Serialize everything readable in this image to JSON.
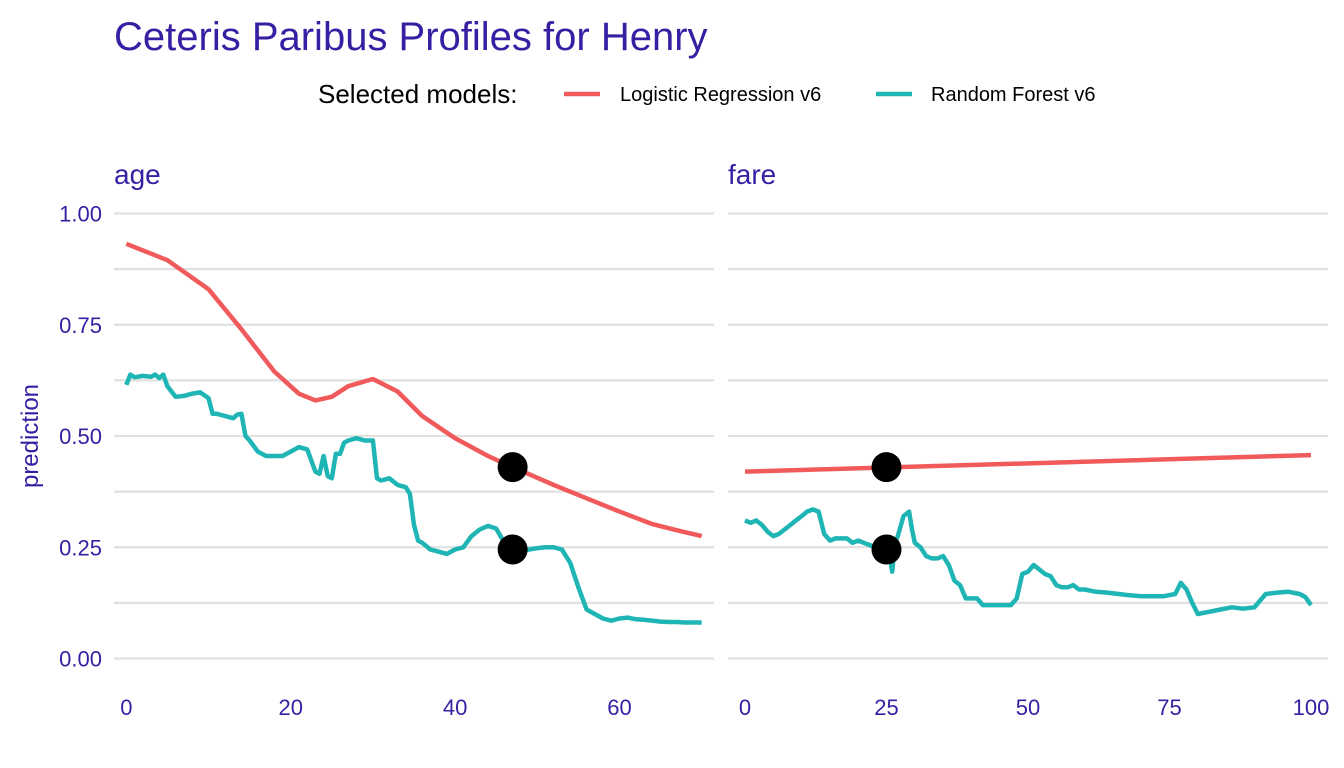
{
  "chart_data": {
    "type": "line",
    "title": "Ceteris Paribus Profiles for Henry",
    "legend": {
      "title": "Selected models:",
      "placement": "top",
      "entries": [
        {
          "label": "Logistic Regression v6",
          "color": "#f05a5a"
        },
        {
          "label": "Random Forest v6",
          "color": "#1fb5b5"
        }
      ]
    },
    "ylabel": "prediction",
    "ylim": [
      0,
      1
    ],
    "yticks": [
      "0.00",
      "0.25",
      "0.50",
      "0.75",
      "1.00"
    ],
    "grid": true,
    "point_color": "#000000",
    "panels": [
      {
        "label": "age",
        "xlim": [
          -1.5,
          71.5
        ],
        "xticks": [
          "0",
          "20",
          "40",
          "60"
        ],
        "observation": {
          "x": 47,
          "values": [
            0.43,
            0.245
          ]
        },
        "series": [
          {
            "name": "Logistic Regression v6",
            "color": "#f05a5a",
            "x": [
              0,
              5,
              10,
              14,
              18,
              21,
              23,
              25,
              27,
              30,
              33,
              36,
              40,
              44,
              47,
              52,
              56,
              60,
              64,
              67,
              70
            ],
            "y": [
              0.932,
              0.895,
              0.83,
              0.74,
              0.645,
              0.595,
              0.58,
              0.588,
              0.612,
              0.628,
              0.6,
              0.545,
              0.495,
              0.455,
              0.43,
              0.39,
              0.36,
              0.33,
              0.302,
              0.288,
              0.275
            ]
          },
          {
            "name": "Random Forest v6",
            "color": "#1fb5b5",
            "x": [
              0,
              0.5,
              1,
              2,
              3,
              3.5,
              4,
              4.5,
              5,
              5.5,
              6,
              7,
              8,
              9,
              10,
              10.5,
              11,
              12,
              13,
              13.5,
              14,
              14.5,
              15,
              16,
              17,
              18,
              19,
              20,
              21,
              22,
              23,
              23.5,
              24,
              24.5,
              25,
              25.5,
              26,
              26.5,
              27,
              28,
              29,
              30,
              30.5,
              31,
              32,
              33,
              34,
              34.5,
              35,
              35.5,
              36,
              37,
              38,
              39,
              40,
              41,
              42,
              43,
              44,
              45,
              46,
              47,
              48,
              49,
              50,
              51,
              52,
              53,
              54,
              55,
              55.5,
              56,
              57,
              58,
              59,
              60,
              61,
              62,
              63,
              64,
              65,
              66,
              67,
              68,
              70
            ],
            "y": [
              0.615,
              0.638,
              0.632,
              0.635,
              0.633,
              0.638,
              0.63,
              0.638,
              0.612,
              0.6,
              0.588,
              0.59,
              0.595,
              0.598,
              0.585,
              0.55,
              0.55,
              0.545,
              0.54,
              0.548,
              0.55,
              0.5,
              0.49,
              0.465,
              0.455,
              0.455,
              0.455,
              0.465,
              0.475,
              0.47,
              0.42,
              0.415,
              0.455,
              0.41,
              0.405,
              0.46,
              0.46,
              0.485,
              0.49,
              0.495,
              0.49,
              0.49,
              0.405,
              0.4,
              0.405,
              0.39,
              0.385,
              0.37,
              0.3,
              0.265,
              0.26,
              0.245,
              0.24,
              0.235,
              0.245,
              0.25,
              0.275,
              0.29,
              0.298,
              0.292,
              0.26,
              0.245,
              0.24,
              0.245,
              0.248,
              0.25,
              0.25,
              0.245,
              0.215,
              0.16,
              0.135,
              0.11,
              0.1,
              0.09,
              0.085,
              0.09,
              0.092,
              0.088,
              0.087,
              0.085,
              0.083,
              0.082,
              0.082,
              0.081,
              0.081
            ]
          }
        ]
      },
      {
        "label": "fare",
        "xlim": [
          -3,
          103
        ],
        "xticks": [
          "0",
          "25",
          "50",
          "75",
          "100"
        ],
        "observation": {
          "x": 25,
          "values": [
            0.43,
            0.245
          ]
        },
        "series": [
          {
            "name": "Logistic Regression v6",
            "color": "#f05a5a",
            "x": [
              0,
              100
            ],
            "y": [
              0.42,
              0.457
            ]
          },
          {
            "name": "Random Forest v6",
            "color": "#1fb5b5",
            "x": [
              0,
              1,
              2,
              3,
              4,
              5,
              6,
              7,
              8,
              9,
              10,
              11,
              12,
              13,
              14,
              15,
              16,
              17,
              18,
              19,
              20,
              21,
              22,
              23,
              24,
              25,
              25.5,
              26,
              26.5,
              27,
              28,
              28.5,
              29,
              29.5,
              30,
              31,
              32,
              33,
              34,
              35,
              36,
              37,
              38,
              39,
              40,
              41,
              42,
              43,
              44,
              45,
              46,
              47,
              48,
              49,
              50,
              51,
              52,
              53,
              54,
              55,
              56,
              57,
              58,
              59,
              60,
              62,
              64,
              66,
              68,
              70,
              72,
              74,
              76,
              77,
              78,
              79,
              80,
              82,
              84,
              86,
              88,
              90,
              92,
              94,
              96,
              98,
              99,
              100
            ],
            "y": [
              0.31,
              0.305,
              0.31,
              0.3,
              0.285,
              0.275,
              0.28,
              0.29,
              0.3,
              0.31,
              0.32,
              0.33,
              0.335,
              0.33,
              0.28,
              0.265,
              0.27,
              0.27,
              0.27,
              0.26,
              0.265,
              0.26,
              0.255,
              0.25,
              0.25,
              0.245,
              0.235,
              0.195,
              0.26,
              0.275,
              0.32,
              0.325,
              0.33,
              0.29,
              0.26,
              0.25,
              0.23,
              0.225,
              0.225,
              0.23,
              0.21,
              0.175,
              0.165,
              0.135,
              0.135,
              0.135,
              0.12,
              0.12,
              0.12,
              0.12,
              0.12,
              0.12,
              0.135,
              0.19,
              0.195,
              0.21,
              0.2,
              0.19,
              0.185,
              0.165,
              0.16,
              0.16,
              0.165,
              0.155,
              0.155,
              0.15,
              0.148,
              0.145,
              0.142,
              0.14,
              0.14,
              0.14,
              0.145,
              0.17,
              0.155,
              0.125,
              0.1,
              0.105,
              0.11,
              0.115,
              0.112,
              0.115,
              0.145,
              0.148,
              0.15,
              0.145,
              0.138,
              0.12
            ]
          }
        ]
      }
    ]
  }
}
